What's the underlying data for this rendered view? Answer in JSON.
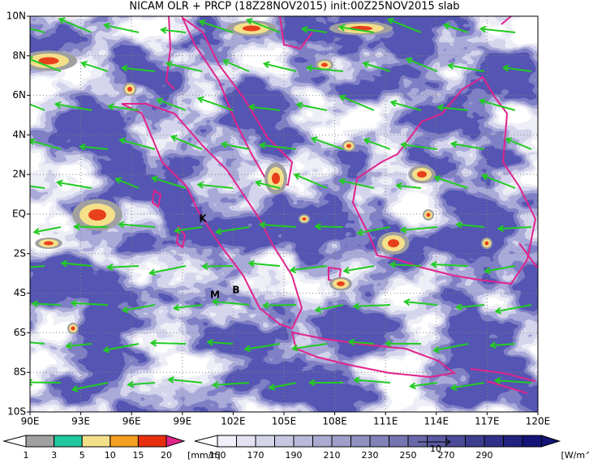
{
  "title": "NICAM OLR + PRCP (18Z28NOV2015) init:00Z25NOV2015 slab",
  "lat_labels": [
    "10N",
    "8N",
    "6N",
    "4N",
    "2N",
    "EQ",
    "2S",
    "4S",
    "6S",
    "8S",
    "10S"
  ],
  "lon_labels": [
    "90E",
    "93E",
    "96E",
    "99E",
    "102E",
    "105E",
    "108E",
    "111E",
    "114E",
    "117E",
    "120E"
  ],
  "markers": [
    {
      "label": "K"
    },
    {
      "label": "M"
    },
    {
      "label": "B"
    }
  ],
  "vector_reference": "10",
  "precip_colorbar": {
    "labels": [
      1,
      3,
      5,
      10,
      15,
      20
    ],
    "unit": "[mm/h]"
  },
  "olr_colorbar": {
    "labels": [
      150,
      170,
      190,
      210,
      230,
      250,
      270,
      290
    ],
    "unit": "[W/m^2]"
  }
}
